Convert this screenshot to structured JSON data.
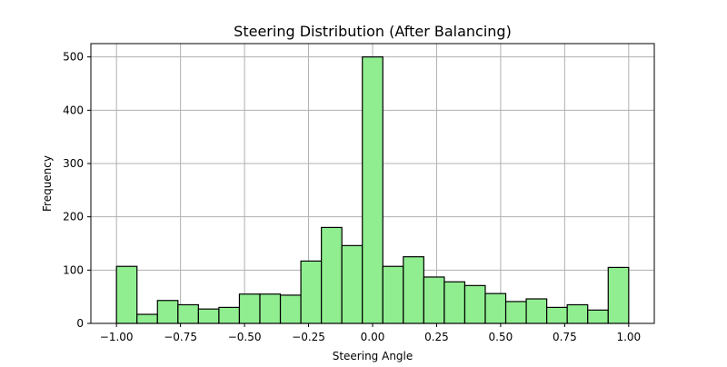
{
  "chart_data": {
    "type": "bar",
    "title": "Steering Distribution (After Balancing)",
    "xlabel": "Steering Angle",
    "ylabel": "Frequency",
    "xlim": [
      -1.1,
      1.1
    ],
    "ylim": [
      0,
      525
    ],
    "xticks": [
      -1.0,
      -0.75,
      -0.5,
      -0.25,
      0.0,
      0.25,
      0.5,
      0.75,
      1.0
    ],
    "xtick_labels": [
      "−1.00",
      "−0.75",
      "−0.50",
      "−0.25",
      "0.00",
      "0.25",
      "0.50",
      "0.75",
      "1.00"
    ],
    "yticks": [
      0,
      100,
      200,
      300,
      400,
      500
    ],
    "ytick_labels": [
      "0",
      "100",
      "200",
      "300",
      "400",
      "500"
    ],
    "grid": true,
    "bar_color": "#90ee90",
    "edge_color": "#000000",
    "grid_color": "#b0b0b0",
    "bins": [
      {
        "x0": -1.0,
        "x1": -0.92,
        "value": 107
      },
      {
        "x0": -0.92,
        "x1": -0.84,
        "value": 17
      },
      {
        "x0": -0.84,
        "x1": -0.76,
        "value": 43
      },
      {
        "x0": -0.76,
        "x1": -0.68,
        "value": 35
      },
      {
        "x0": -0.68,
        "x1": -0.6,
        "value": 27
      },
      {
        "x0": -0.6,
        "x1": -0.52,
        "value": 30
      },
      {
        "x0": -0.52,
        "x1": -0.44,
        "value": 55
      },
      {
        "x0": -0.44,
        "x1": -0.36,
        "value": 55
      },
      {
        "x0": -0.36,
        "x1": -0.28,
        "value": 53
      },
      {
        "x0": -0.28,
        "x1": -0.2,
        "value": 117
      },
      {
        "x0": -0.2,
        "x1": -0.12,
        "value": 180
      },
      {
        "x0": -0.12,
        "x1": -0.04,
        "value": 146
      },
      {
        "x0": -0.04,
        "x1": 0.04,
        "value": 500
      },
      {
        "x0": 0.04,
        "x1": 0.12,
        "value": 107
      },
      {
        "x0": 0.12,
        "x1": 0.2,
        "value": 125
      },
      {
        "x0": 0.2,
        "x1": 0.28,
        "value": 87
      },
      {
        "x0": 0.28,
        "x1": 0.36,
        "value": 78
      },
      {
        "x0": 0.36,
        "x1": 0.44,
        "value": 71
      },
      {
        "x0": 0.44,
        "x1": 0.52,
        "value": 56
      },
      {
        "x0": 0.52,
        "x1": 0.6,
        "value": 41
      },
      {
        "x0": 0.6,
        "x1": 0.68,
        "value": 46
      },
      {
        "x0": 0.68,
        "x1": 0.76,
        "value": 30
      },
      {
        "x0": 0.76,
        "x1": 0.84,
        "value": 35
      },
      {
        "x0": 0.84,
        "x1": 0.92,
        "value": 25
      },
      {
        "x0": 0.92,
        "x1": 1.0,
        "value": 105
      }
    ]
  }
}
